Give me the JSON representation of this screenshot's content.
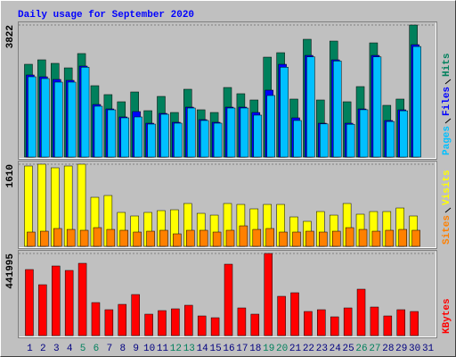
{
  "title": "Daily usage for September 2020",
  "chart_data": [
    {
      "type": "bar",
      "ylim": [
        0,
        3822
      ],
      "yticks": [
        3822
      ],
      "series": [
        {
          "name": "Hits",
          "color": "#00805C",
          "values": [
            2686,
            2815,
            2712,
            2582,
            2996,
            2066,
            1808,
            1601,
            1885,
            1343,
            1756,
            1291,
            1963,
            1369,
            1291,
            2014,
            1834,
            1653,
            2892,
            3021,
            1679,
            3409,
            1653,
            3357,
            1601,
            2040,
            3305,
            1498,
            1679,
            3822,
            null
          ]
        },
        {
          "name": "Files",
          "color": "#0000FF",
          "values": [
            2376,
            2324,
            2247,
            2221,
            2634,
            1523,
            1394,
            1162,
            1317,
            981,
            1265,
            1007,
            1446,
            1084,
            1007,
            1446,
            1446,
            1291,
            1937,
            2685,
            1136,
            2943,
            981,
            2814,
            981,
            1394,
            2943,
            1059,
            1368,
            3253,
            null
          ]
        },
        {
          "name": "Pages",
          "color": "#00C0FF",
          "values": [
            2324,
            2272,
            2169,
            2169,
            2600,
            1472,
            1368,
            1136,
            1162,
            955,
            1239,
            981,
            1420,
            1059,
            981,
            1420,
            1420,
            1214,
            1782,
            2600,
            1059,
            2900,
            960,
            2780,
            950,
            1370,
            2900,
            1030,
            1340,
            3200,
            null
          ]
        }
      ]
    },
    {
      "type": "bar",
      "ylim": [
        0,
        1610
      ],
      "yticks": [
        1610
      ],
      "series": [
        {
          "name": "Visits",
          "color": "#FFFF00",
          "values": [
            1575,
            1610,
            1540,
            1575,
            1610,
            962,
            997,
            665,
            595,
            665,
            700,
            717,
            840,
            647,
            612,
            840,
            822,
            735,
            822,
            822,
            577,
            490,
            682,
            612,
            840,
            630,
            682,
            682,
            752,
            595,
            null
          ]
        },
        {
          "name": "Sites",
          "color": "#FF8000",
          "values": [
            280,
            297,
            350,
            332,
            315,
            367,
            332,
            315,
            280,
            297,
            315,
            245,
            315,
            315,
            280,
            315,
            402,
            332,
            350,
            280,
            280,
            297,
            280,
            297,
            367,
            332,
            297,
            315,
            332,
            315,
            null
          ]
        }
      ]
    },
    {
      "type": "bar",
      "ylim": [
        0,
        441995
      ],
      "yticks": [
        441995
      ],
      "series": [
        {
          "name": "KBytes",
          "color": "#FF0000",
          "values": [
            355500,
            273800,
            374700,
            350700,
            389100,
            177700,
            139300,
            168100,
            221000,
            115300,
            134500,
            144100,
            163300,
            105700,
            96100,
            384300,
            148900,
            115300,
            441995,
            211400,
            230600,
            129700,
            139300,
            100900,
            148900,
            249800,
            153700,
            105700,
            139300,
            129700,
            null
          ]
        }
      ],
      "categories": [
        "1",
        "2",
        "3",
        "4",
        "5",
        "6",
        "7",
        "8",
        "9",
        "10",
        "11",
        "12",
        "13",
        "14",
        "15",
        "16",
        "17",
        "18",
        "19",
        "20",
        "21",
        "22",
        "23",
        "24",
        "25",
        "26",
        "27",
        "28",
        "29",
        "30",
        "31"
      ],
      "category_colors": [
        "#000080",
        "#000080",
        "#000080",
        "#000080",
        "#00805C",
        "#00805C",
        "#000080",
        "#000080",
        "#000080",
        "#000080",
        "#000080",
        "#00805C",
        "#00805C",
        "#000080",
        "#000080",
        "#000080",
        "#000080",
        "#000080",
        "#00805C",
        "#00805C",
        "#000080",
        "#000080",
        "#000080",
        "#000080",
        "#000080",
        "#00805C",
        "#00805C",
        "#000080",
        "#000080",
        "#000080",
        "#000080"
      ]
    }
  ]
}
